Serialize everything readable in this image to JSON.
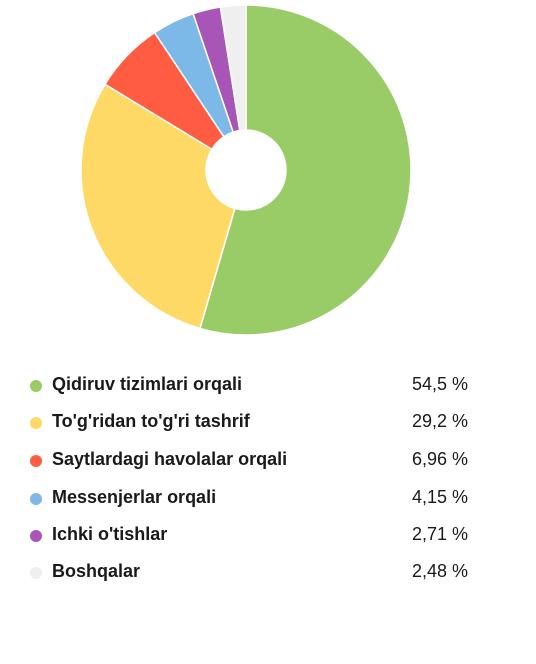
{
  "chart_data": {
    "type": "pie",
    "variant": "donut",
    "legend_position": "bottom",
    "slices": [
      {
        "label": "Qidiruv tizimlari orqali",
        "value": 54.5,
        "display": "54,5 %",
        "color": "#99cc66"
      },
      {
        "label": "To'g'ridan to'g'ri tashrif",
        "value": 29.2,
        "display": "29,2 %",
        "color": "#ffd966"
      },
      {
        "label": "Saytlardagi havolalar orqali",
        "value": 6.96,
        "display": "6,96 %",
        "color": "#ff5c42"
      },
      {
        "label": "Messenjerlar orqali",
        "value": 4.15,
        "display": "4,15 %",
        "color": "#7db9e8"
      },
      {
        "label": "Ichki o'tishlar",
        "value": 2.71,
        "display": "2,71 %",
        "color": "#a855b8"
      },
      {
        "label": "Boshqalar",
        "value": 2.48,
        "display": "2,48 %",
        "color": "#efefef"
      }
    ]
  }
}
